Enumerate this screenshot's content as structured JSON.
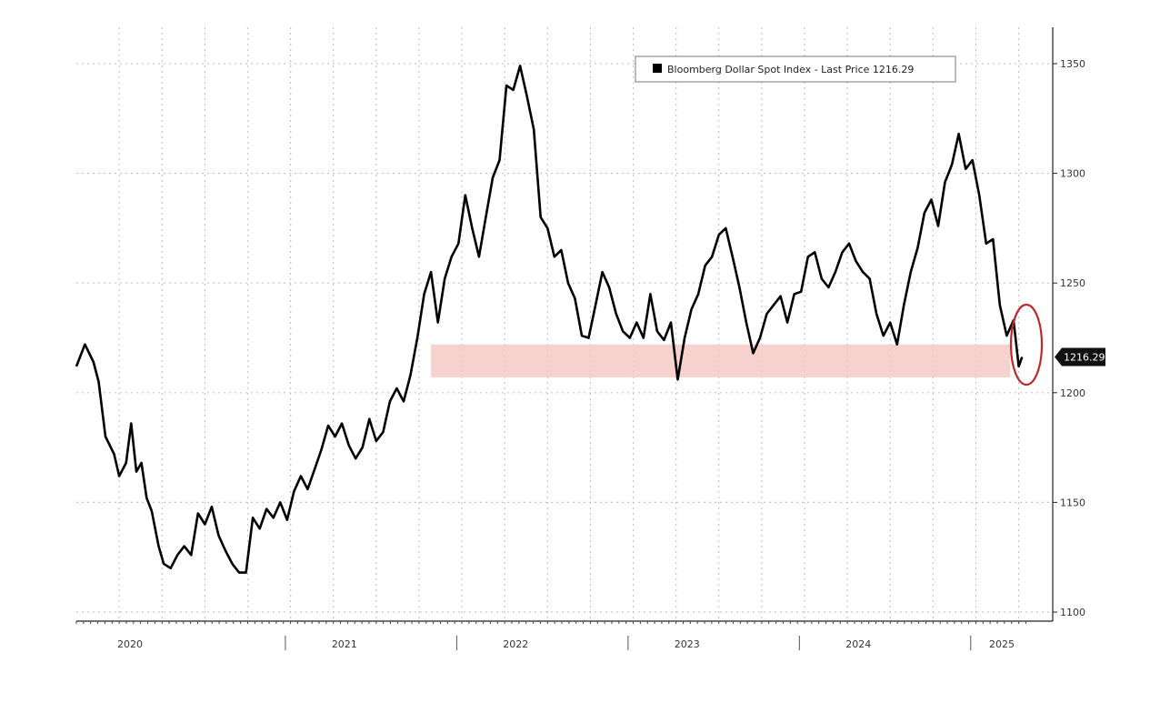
{
  "chart_data": {
    "type": "line",
    "legend": {
      "label": "Bloomberg Dollar Spot Index - Last Price 1216.29",
      "swatch_color": "#000000",
      "placement": "top-right"
    },
    "current_value_label": "1216.29",
    "ylim": [
      1100,
      1360
    ],
    "yticks": [
      1100,
      1150,
      1200,
      1250,
      1300,
      1350
    ],
    "ytick_labels": [
      "1100",
      "1150",
      "1200",
      "1250",
      "1300",
      "1350"
    ],
    "xlim": [
      2019.75,
      2025.3
    ],
    "x_year_labels": [
      {
        "label": "2020",
        "x": 2020.0
      },
      {
        "label": "2021",
        "x": 2021.0
      },
      {
        "label": "2022",
        "x": 2022.0
      },
      {
        "label": "2023",
        "x": 2023.0
      },
      {
        "label": "2024",
        "x": 2024.0
      },
      {
        "label": "2025",
        "x": 2025.0
      }
    ],
    "grid": true,
    "highlight_band": {
      "y_low": 1207,
      "y_high": 1222,
      "x_start": 2021.82,
      "x_end": 2025.2,
      "color": "#f5c9c6"
    },
    "highlight_circle": {
      "x": 2025.15,
      "y": 1217,
      "color": "#c0272d"
    },
    "line_color": "#000000",
    "series": [
      {
        "name": "Bloomberg Dollar Spot Index - Last Price",
        "points": [
          [
            2019.75,
            1212
          ],
          [
            2019.8,
            1222
          ],
          [
            2019.85,
            1214
          ],
          [
            2019.88,
            1205
          ],
          [
            2019.92,
            1180
          ],
          [
            2019.97,
            1172
          ],
          [
            2020.0,
            1162
          ],
          [
            2020.04,
            1168
          ],
          [
            2020.07,
            1186
          ],
          [
            2020.1,
            1164
          ],
          [
            2020.13,
            1168
          ],
          [
            2020.16,
            1152
          ],
          [
            2020.19,
            1146
          ],
          [
            2020.23,
            1130
          ],
          [
            2020.26,
            1122
          ],
          [
            2020.3,
            1120
          ],
          [
            2020.34,
            1126
          ],
          [
            2020.38,
            1130
          ],
          [
            2020.42,
            1126
          ],
          [
            2020.46,
            1145
          ],
          [
            2020.5,
            1140
          ],
          [
            2020.54,
            1148
          ],
          [
            2020.58,
            1135
          ],
          [
            2020.62,
            1128
          ],
          [
            2020.66,
            1122
          ],
          [
            2020.7,
            1118
          ],
          [
            2020.74,
            1118
          ],
          [
            2020.78,
            1143
          ],
          [
            2020.82,
            1138
          ],
          [
            2020.86,
            1147
          ],
          [
            2020.9,
            1143
          ],
          [
            2020.94,
            1150
          ],
          [
            2020.98,
            1142
          ],
          [
            2021.02,
            1155
          ],
          [
            2021.06,
            1162
          ],
          [
            2021.1,
            1156
          ],
          [
            2021.14,
            1165
          ],
          [
            2021.18,
            1174
          ],
          [
            2021.22,
            1185
          ],
          [
            2021.26,
            1180
          ],
          [
            2021.3,
            1186
          ],
          [
            2021.34,
            1176
          ],
          [
            2021.38,
            1170
          ],
          [
            2021.42,
            1175
          ],
          [
            2021.46,
            1188
          ],
          [
            2021.5,
            1178
          ],
          [
            2021.54,
            1182
          ],
          [
            2021.58,
            1196
          ],
          [
            2021.62,
            1202
          ],
          [
            2021.66,
            1196
          ],
          [
            2021.7,
            1208
          ],
          [
            2021.74,
            1225
          ],
          [
            2021.78,
            1245
          ],
          [
            2021.82,
            1255
          ],
          [
            2021.86,
            1232
          ],
          [
            2021.9,
            1252
          ],
          [
            2021.94,
            1262
          ],
          [
            2021.98,
            1268
          ],
          [
            2022.02,
            1290
          ],
          [
            2022.06,
            1275
          ],
          [
            2022.1,
            1262
          ],
          [
            2022.14,
            1280
          ],
          [
            2022.18,
            1298
          ],
          [
            2022.22,
            1306
          ],
          [
            2022.26,
            1340
          ],
          [
            2022.3,
            1338
          ],
          [
            2022.34,
            1349
          ],
          [
            2022.38,
            1335
          ],
          [
            2022.42,
            1320
          ],
          [
            2022.46,
            1280
          ],
          [
            2022.5,
            1275
          ],
          [
            2022.54,
            1262
          ],
          [
            2022.58,
            1265
          ],
          [
            2022.62,
            1250
          ],
          [
            2022.66,
            1243
          ],
          [
            2022.7,
            1226
          ],
          [
            2022.74,
            1225
          ],
          [
            2022.78,
            1240
          ],
          [
            2022.82,
            1255
          ],
          [
            2022.86,
            1248
          ],
          [
            2022.9,
            1236
          ],
          [
            2022.94,
            1228
          ],
          [
            2022.98,
            1225
          ],
          [
            2023.02,
            1232
          ],
          [
            2023.06,
            1225
          ],
          [
            2023.1,
            1245
          ],
          [
            2023.14,
            1228
          ],
          [
            2023.18,
            1224
          ],
          [
            2023.22,
            1232
          ],
          [
            2023.26,
            1206
          ],
          [
            2023.3,
            1225
          ],
          [
            2023.34,
            1238
          ],
          [
            2023.38,
            1245
          ],
          [
            2023.42,
            1258
          ],
          [
            2023.46,
            1262
          ],
          [
            2023.5,
            1272
          ],
          [
            2023.54,
            1275
          ],
          [
            2023.58,
            1262
          ],
          [
            2023.62,
            1248
          ],
          [
            2023.66,
            1232
          ],
          [
            2023.7,
            1218
          ],
          [
            2023.74,
            1225
          ],
          [
            2023.78,
            1236
          ],
          [
            2023.82,
            1240
          ],
          [
            2023.86,
            1244
          ],
          [
            2023.9,
            1232
          ],
          [
            2023.94,
            1245
          ],
          [
            2023.98,
            1246
          ],
          [
            2024.02,
            1262
          ],
          [
            2024.06,
            1264
          ],
          [
            2024.1,
            1252
          ],
          [
            2024.14,
            1248
          ],
          [
            2024.18,
            1255
          ],
          [
            2024.22,
            1264
          ],
          [
            2024.26,
            1268
          ],
          [
            2024.3,
            1260
          ],
          [
            2024.34,
            1255
          ],
          [
            2024.38,
            1252
          ],
          [
            2024.42,
            1236
          ],
          [
            2024.46,
            1226
          ],
          [
            2024.5,
            1232
          ],
          [
            2024.54,
            1222
          ],
          [
            2024.58,
            1240
          ],
          [
            2024.62,
            1255
          ],
          [
            2024.66,
            1266
          ],
          [
            2024.7,
            1282
          ],
          [
            2024.74,
            1288
          ],
          [
            2024.78,
            1276
          ],
          [
            2024.82,
            1296
          ],
          [
            2024.86,
            1304
          ],
          [
            2024.9,
            1318
          ],
          [
            2024.94,
            1302
          ],
          [
            2024.98,
            1306
          ],
          [
            2025.02,
            1290
          ],
          [
            2025.06,
            1268
          ],
          [
            2025.1,
            1270
          ],
          [
            2025.14,
            1240
          ],
          [
            2025.18,
            1226
          ],
          [
            2025.22,
            1233
          ],
          [
            2025.25,
            1212
          ],
          [
            2025.27,
            1216.29
          ]
        ]
      }
    ]
  }
}
